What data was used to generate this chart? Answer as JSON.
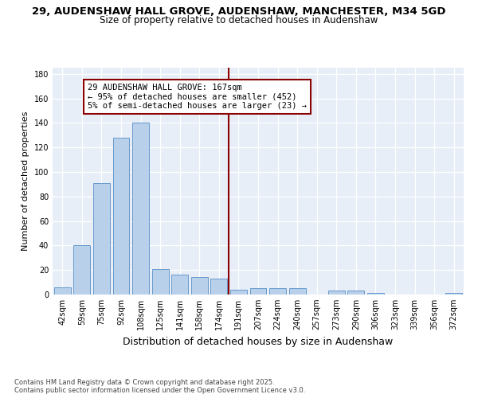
{
  "title_line1": "29, AUDENSHAW HALL GROVE, AUDENSHAW, MANCHESTER, M34 5GD",
  "title_line2": "Size of property relative to detached houses in Audenshaw",
  "xlabel": "Distribution of detached houses by size in Audenshaw",
  "ylabel": "Number of detached properties",
  "bar_labels": [
    "42sqm",
    "59sqm",
    "75sqm",
    "92sqm",
    "108sqm",
    "125sqm",
    "141sqm",
    "158sqm",
    "174sqm",
    "191sqm",
    "207sqm",
    "224sqm",
    "240sqm",
    "257sqm",
    "273sqm",
    "290sqm",
    "306sqm",
    "323sqm",
    "339sqm",
    "356sqm",
    "372sqm"
  ],
  "bar_values": [
    6,
    40,
    91,
    128,
    140,
    21,
    16,
    14,
    13,
    4,
    5,
    5,
    5,
    0,
    3,
    3,
    1,
    0,
    0,
    0,
    1
  ],
  "bar_color": "#b8d0ea",
  "bar_edge_color": "#6699cc",
  "vline_x": 8.5,
  "vline_color": "#8b0000",
  "annotation_text": "29 AUDENSHAW HALL GROVE: 167sqm\n← 95% of detached houses are smaller (452)\n5% of semi-detached houses are larger (23) →",
  "annotation_box_color": "#ffffff",
  "annotation_box_edge": "#8b0000",
  "ylim": [
    0,
    185
  ],
  "yticks": [
    0,
    20,
    40,
    60,
    80,
    100,
    120,
    140,
    160,
    180
  ],
  "footer_text": "Contains HM Land Registry data © Crown copyright and database right 2025.\nContains public sector information licensed under the Open Government Licence v3.0.",
  "bg_color": "#e8eef7",
  "title_fontsize": 9.5,
  "subtitle_fontsize": 8.5,
  "axis_label_fontsize": 8,
  "tick_fontsize": 7,
  "annotation_fontsize": 7.5
}
